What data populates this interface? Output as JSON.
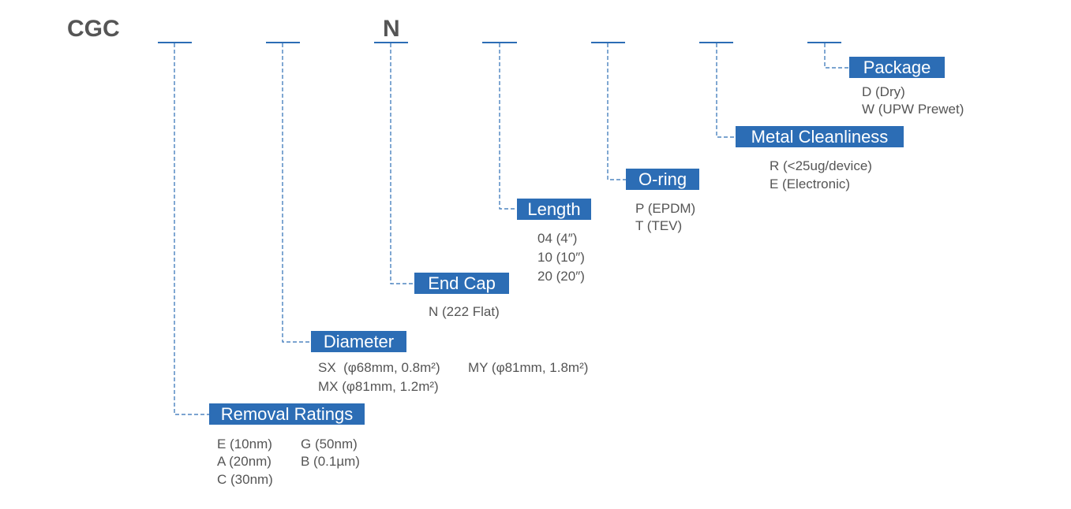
{
  "prefix": "CGC",
  "fixed_code": "N",
  "fields": [
    {
      "label": "Removal Ratings",
      "options": [
        "E (10nm)",
        "A (20nm)",
        "C (30nm)",
        "G (50nm)",
        "B (0.1µm)"
      ]
    },
    {
      "label": "Diameter",
      "options": [
        "SX  (φ68mm, 0.8m²)",
        "MX (φ81mm, 1.2m²)",
        "MY (φ81mm, 1.8m²)"
      ]
    },
    {
      "label": "End Cap",
      "options": [
        "N (222 Flat)"
      ]
    },
    {
      "label": "Length",
      "options": [
        "04 (4″)",
        "10 (10″)",
        "20 (20″)"
      ]
    },
    {
      "label": "O-ring",
      "options": [
        "P (EPDM)",
        "T (TEV)"
      ]
    },
    {
      "label": "Metal Cleanliness",
      "options": [
        "R (<25ug/device)",
        "E (Electronic)"
      ]
    },
    {
      "label": "Package",
      "options": [
        "D (Dry)",
        "W (UPW Prewet)"
      ]
    }
  ]
}
